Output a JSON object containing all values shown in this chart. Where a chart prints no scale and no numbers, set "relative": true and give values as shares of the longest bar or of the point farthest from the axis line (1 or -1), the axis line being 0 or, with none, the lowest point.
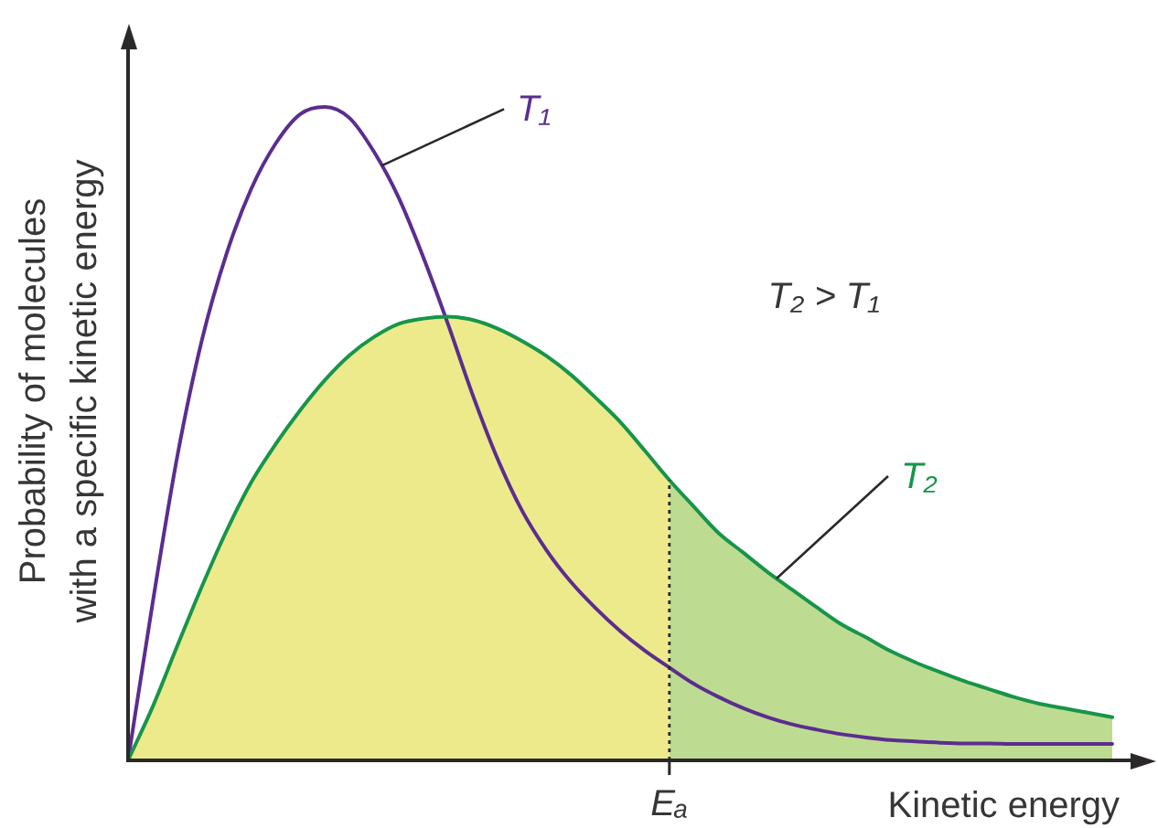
{
  "chart_data": {
    "type": "line",
    "relative": true,
    "xlabel": "Kinetic energy",
    "ylabel": "Probability of molecules\nwith a specific kinetic energy",
    "annotations": [
      "T₂ > T₁"
    ],
    "tick_labels": false,
    "categories": [
      null,
      null,
      null,
      null,
      null,
      null,
      null,
      null,
      null,
      null,
      null,
      null,
      null,
      null,
      null,
      null,
      null,
      null,
      null,
      null,
      null,
      null,
      null,
      null,
      null,
      null,
      null,
      null,
      null,
      null,
      null,
      null,
      null,
      null,
      null,
      null,
      null,
      null,
      null,
      null,
      null
    ],
    "series": [
      {
        "type": "area",
        "color": "#ecea8b",
        "values": [
          0,
          0.082,
          0.175,
          0.266,
          0.351,
          0.425,
          0.484,
          0.536,
          0.582,
          0.62,
          0.648,
          0.668,
          0.676,
          0.679,
          0.674,
          0.661,
          0.642,
          0.619,
          0.59,
          0.555,
          0.518,
          0.474,
          0.429,
          null,
          null,
          null,
          null,
          null,
          null,
          null,
          null,
          null,
          null,
          null,
          null,
          null,
          null,
          null,
          null,
          null,
          null
        ]
      },
      {
        "type": "area",
        "color": "#bedc91",
        "values": [
          null,
          null,
          null,
          null,
          null,
          null,
          null,
          null,
          null,
          null,
          null,
          null,
          null,
          null,
          null,
          null,
          null,
          null,
          null,
          null,
          null,
          null,
          0.429,
          0.388,
          0.348,
          0.318,
          0.288,
          0.261,
          0.234,
          0.208,
          0.188,
          0.167,
          0.15,
          0.135,
          0.121,
          0.109,
          0.097,
          0.087,
          0.08,
          0.073,
          0.066
        ]
      },
      {
        "name": "T₁",
        "type": "line",
        "color": "#5b2d90",
        "values": [
          0,
          0.241,
          0.465,
          0.643,
          0.775,
          0.874,
          0.944,
          0.989,
          1,
          0.983,
          0.931,
          0.861,
          0.77,
          0.668,
          0.56,
          0.463,
          0.383,
          0.322,
          0.273,
          0.233,
          0.198,
          0.168,
          0.142,
          0.117,
          0.097,
          0.08,
          0.066,
          0.055,
          0.047,
          0.04,
          0.035,
          0.031,
          0.029,
          0.027,
          0.026,
          0.026,
          0.025,
          0.025,
          0.025,
          0.025,
          0.025
        ]
      },
      {
        "name": "T₂",
        "type": "line",
        "color": "#17954a",
        "values": [
          0,
          0.082,
          0.175,
          0.266,
          0.351,
          0.425,
          0.484,
          0.536,
          0.582,
          0.62,
          0.648,
          0.668,
          0.676,
          0.679,
          0.674,
          0.661,
          0.642,
          0.619,
          0.59,
          0.555,
          0.518,
          0.474,
          0.429,
          0.388,
          0.348,
          0.318,
          0.288,
          0.261,
          0.234,
          0.208,
          0.188,
          0.167,
          0.15,
          0.135,
          0.121,
          0.109,
          0.097,
          0.087,
          0.08,
          0.073,
          0.066
        ]
      }
    ],
    "ref_lines": [
      {
        "axis": "x",
        "label": "Eₐ",
        "line_style": "dotted"
      }
    ]
  }
}
